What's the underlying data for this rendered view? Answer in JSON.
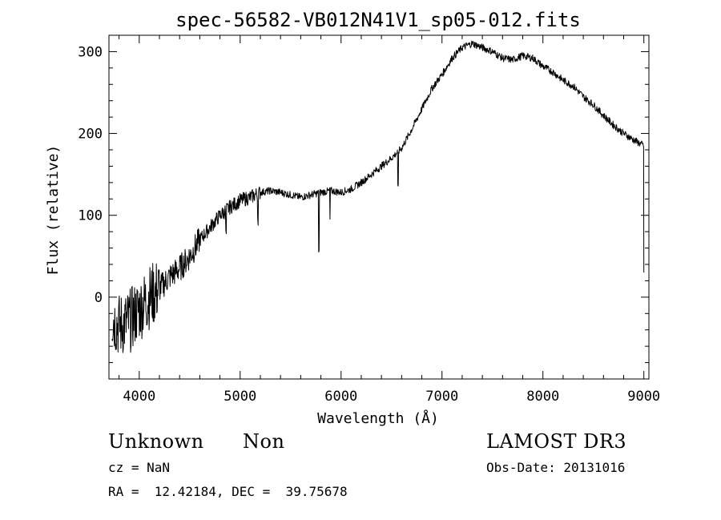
{
  "chart_data": {
    "type": "line",
    "title": "spec-56582-VB012N41V1_sp05-012.fits",
    "xlabel": "Wavelength (Å)",
    "ylabel": "Flux (relative)",
    "xlim": [
      3700,
      9050
    ],
    "ylim": [
      -100,
      320
    ],
    "xticks": [
      4000,
      5000,
      6000,
      7000,
      8000,
      9000
    ],
    "yticks": [
      0,
      100,
      200,
      300
    ],
    "series": [
      {
        "name": "flux",
        "x": [
          3700,
          3800,
          3900,
          4000,
          4100,
          4200,
          4300,
          4400,
          4500,
          4600,
          4700,
          4800,
          4900,
          5000,
          5100,
          5200,
          5300,
          5400,
          5500,
          5600,
          5700,
          5800,
          5900,
          6000,
          6100,
          6200,
          6300,
          6400,
          6500,
          6600,
          6700,
          6800,
          6900,
          7000,
          7100,
          7200,
          7300,
          7400,
          7500,
          7600,
          7700,
          7800,
          7900,
          8000,
          8100,
          8200,
          8300,
          8400,
          8500,
          8600,
          8700,
          8800,
          8900,
          9000
        ],
        "values": [
          -20,
          -35,
          -30,
          -15,
          0,
          10,
          25,
          35,
          50,
          70,
          85,
          100,
          110,
          118,
          122,
          128,
          130,
          128,
          125,
          122,
          125,
          128,
          130,
          128,
          132,
          140,
          150,
          160,
          170,
          182,
          205,
          230,
          255,
          272,
          292,
          305,
          310,
          305,
          300,
          292,
          290,
          295,
          292,
          282,
          275,
          265,
          258,
          245,
          235,
          222,
          210,
          200,
          192,
          185
        ]
      }
    ],
    "absorption_lines": [
      {
        "x": 4861,
        "depth": 30
      },
      {
        "x": 5175,
        "depth": 30
      },
      {
        "x": 5780,
        "depth": 70
      },
      {
        "x": 5890,
        "depth": 35
      },
      {
        "x": 6563,
        "depth": 45
      }
    ]
  },
  "info": {
    "object_class": "Unknown",
    "subclass": "Non",
    "survey": "LAMOST DR3",
    "cz": "cz = NaN",
    "obs_date": "Obs-Date: 20131016",
    "coords": "RA =  12.42184, DEC =  39.75678"
  }
}
